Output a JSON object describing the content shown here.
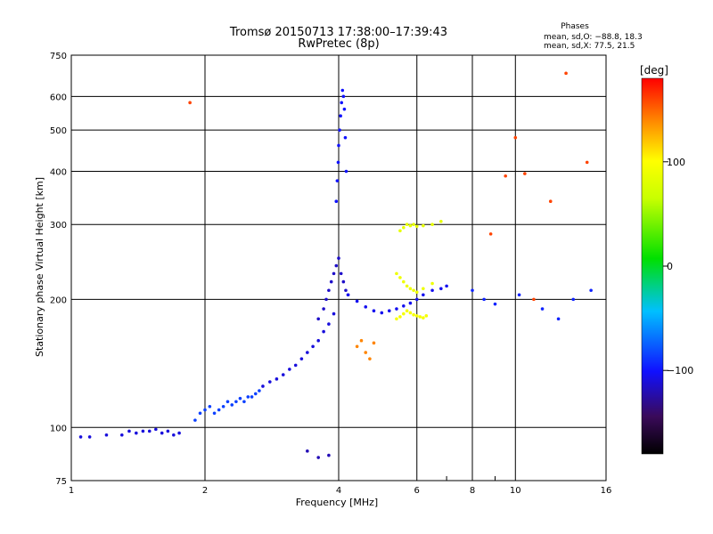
{
  "chart_data": {
    "type": "scatter",
    "title": "Tromsø 20150713 17:38:00–17:39:43",
    "subtitle": "RwPretec (8p)",
    "xlabel": "Frequency [MHz]",
    "ylabel": "Stationary phase Virtual Height [km]",
    "x_scale": "log",
    "y_scale": "log",
    "xlim": [
      1,
      16
    ],
    "ylim": [
      75,
      750
    ],
    "x_ticks": [
      "1",
      "2",
      "4",
      "6",
      "8",
      "10",
      "16"
    ],
    "y_ticks": [
      "75",
      "100",
      "200",
      "300",
      "400",
      "500",
      "600",
      "750"
    ],
    "grid": true,
    "stats": {
      "heading": "Phases",
      "line_o": "mean, sd,O: −88.8, 18.3",
      "line_x": "mean, sd,X:  77.5, 21.5"
    },
    "colorbar": {
      "label": "[deg]",
      "ticks": [
        "100",
        "0",
        "−100"
      ],
      "range": [
        -180,
        180
      ]
    },
    "series": [
      {
        "x": [
          1.05,
          1.1,
          1.2,
          1.3,
          1.35,
          1.4,
          1.45,
          1.5,
          1.55,
          1.6,
          1.65,
          1.7,
          1.75
        ],
        "y": [
          95,
          95,
          96,
          96,
          98,
          97,
          98,
          98,
          99,
          97,
          98,
          96,
          97
        ],
        "phase": -110
      },
      {
        "x": [
          1.9,
          1.95,
          2.0,
          2.05,
          2.1,
          2.15,
          2.2,
          2.25,
          2.3,
          2.35,
          2.4,
          2.45,
          2.5,
          2.55,
          2.6,
          2.65
        ],
        "y": [
          104,
          108,
          110,
          112,
          108,
          110,
          112,
          115,
          113,
          115,
          117,
          115,
          118,
          118,
          120,
          122
        ],
        "phase": -85
      },
      {
        "x": [
          2.7,
          2.8,
          2.9,
          3.0,
          3.1,
          3.2,
          3.3,
          3.4,
          3.5,
          3.6,
          3.7,
          3.8,
          3.9
        ],
        "y": [
          125,
          128,
          130,
          133,
          137,
          140,
          145,
          150,
          155,
          160,
          168,
          175,
          185
        ],
        "phase": -110
      },
      {
        "x": [
          3.6,
          3.7,
          3.75,
          3.8,
          3.85,
          3.9,
          3.95,
          4.0,
          4.05,
          4.1,
          4.15,
          4.2
        ],
        "y": [
          180,
          190,
          200,
          210,
          220,
          230,
          240,
          250,
          230,
          220,
          210,
          205
        ],
        "phase": -115
      },
      {
        "x": [
          3.95,
          3.97,
          3.99,
          4.0,
          4.02,
          4.04,
          4.06,
          4.08,
          4.1,
          4.12,
          4.14,
          4.16
        ],
        "y": [
          340,
          380,
          420,
          460,
          500,
          540,
          580,
          620,
          600,
          560,
          480,
          400
        ],
        "phase": -100
      },
      {
        "x": [
          4.2,
          4.4,
          4.6,
          4.8,
          5.0,
          5.2,
          5.4,
          5.6,
          5.8,
          6.0,
          6.2,
          6.5,
          6.8,
          7.0
        ],
        "y": [
          205,
          198,
          192,
          188,
          186,
          188,
          190,
          193,
          196,
          200,
          205,
          210,
          212,
          215
        ],
        "phase": -105
      },
      {
        "x": [
          5.4,
          5.5,
          5.6,
          5.7,
          5.8,
          5.9,
          6.0,
          6.1,
          6.2,
          6.3
        ],
        "y": [
          180,
          182,
          185,
          188,
          186,
          184,
          183,
          182,
          181,
          183
        ],
        "phase": 95
      },
      {
        "x": [
          5.4,
          5.5,
          5.6,
          5.7,
          5.8,
          5.9,
          6.0,
          6.2,
          6.5
        ],
        "y": [
          230,
          225,
          220,
          215,
          212,
          210,
          208,
          212,
          218
        ],
        "phase": 90
      },
      {
        "x": [
          5.5,
          5.6,
          5.7,
          5.8,
          5.9,
          6.0,
          6.2,
          6.5,
          6.8
        ],
        "y": [
          290,
          295,
          300,
          298,
          300,
          297,
          298,
          300,
          305
        ],
        "phase": 85
      },
      {
        "x": [
          4.4,
          4.5,
          4.6,
          4.7,
          4.8
        ],
        "y": [
          155,
          160,
          150,
          145,
          158
        ],
        "phase": 140
      },
      {
        "x": [
          3.4,
          3.6,
          3.8
        ],
        "y": [
          88,
          85,
          86
        ],
        "phase": -120
      },
      {
        "x": [
          1.85,
          8.8,
          10.0,
          10.5,
          12.0,
          13.0,
          14.5,
          9.5,
          11.0
        ],
        "y": [
          580,
          285,
          480,
          395,
          340,
          680,
          420,
          390,
          200
        ],
        "phase": 160
      },
      {
        "x": [
          8.0,
          8.5,
          9.0,
          10.2,
          11.5,
          12.5,
          13.5,
          14.8
        ],
        "y": [
          210,
          200,
          195,
          205,
          190,
          180,
          200,
          210
        ],
        "phase": -95
      }
    ]
  }
}
